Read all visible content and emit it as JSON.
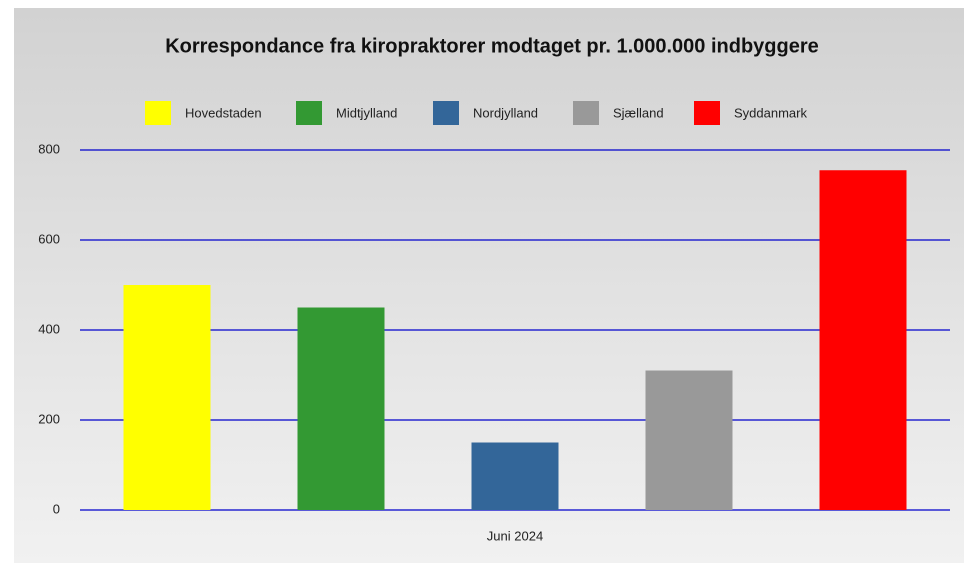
{
  "chart_data": {
    "type": "bar",
    "title": "Korrespondance fra kiropraktorer modtaget pr. 1.000.000 indbyggere",
    "categories": [
      "Juni 2024"
    ],
    "series": [
      {
        "name": "Hovedstaden",
        "color": "#ffff00",
        "values": [
          500
        ]
      },
      {
        "name": "Midtjylland",
        "color": "#339933",
        "values": [
          450
        ]
      },
      {
        "name": "Nordjylland",
        "color": "#336699",
        "values": [
          150
        ]
      },
      {
        "name": "Sjælland",
        "color": "#999999",
        "values": [
          310
        ]
      },
      {
        "name": "Syddanmark",
        "color": "#ff0000",
        "values": [
          755
        ]
      }
    ],
    "ylim": [
      0,
      800
    ],
    "yticks": [
      0,
      200,
      400,
      600,
      800
    ],
    "grid": true,
    "legend": "top"
  }
}
